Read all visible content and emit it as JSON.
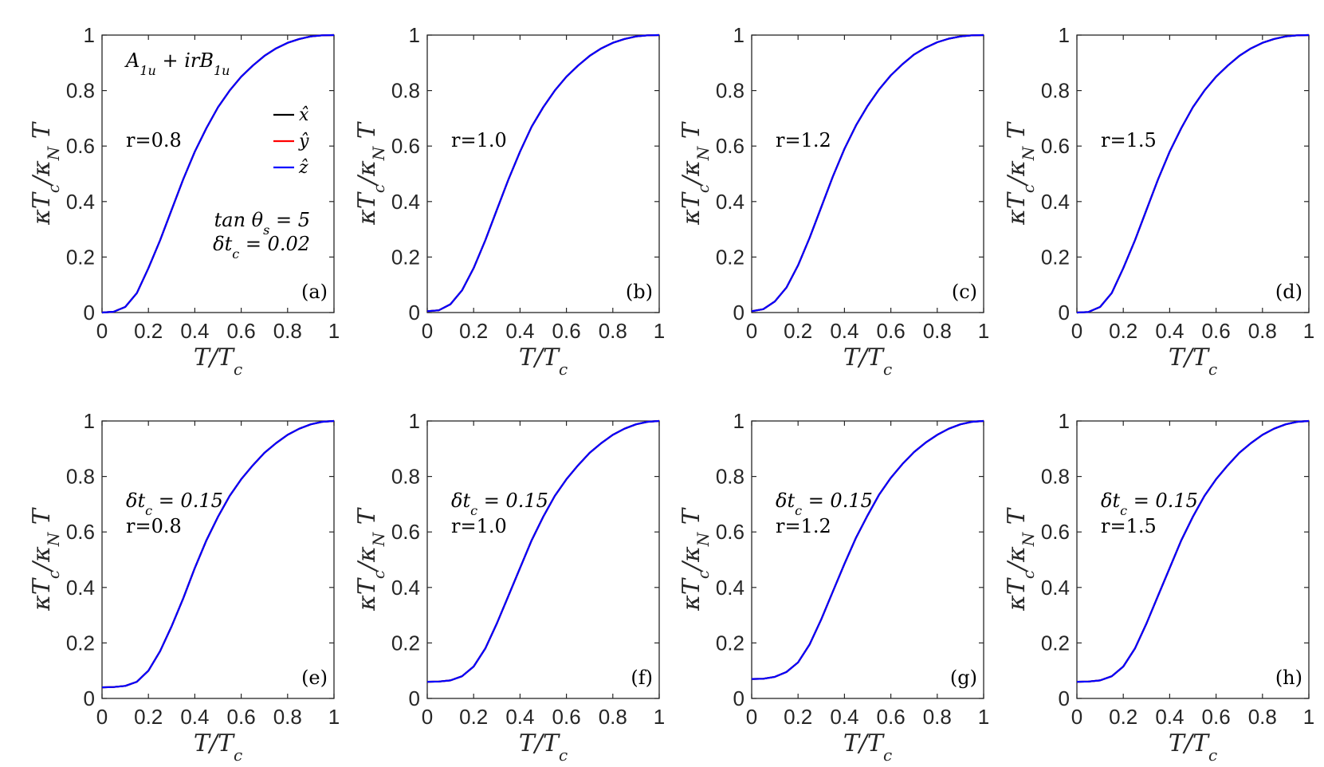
{
  "chart_data": [
    {
      "type": "line",
      "panel_label": "(a)",
      "title": "",
      "xlabel": "T/T_c",
      "ylabel": "κT_c/κ_N T",
      "xlim": [
        0,
        1
      ],
      "ylim": [
        0,
        1
      ],
      "xticks": [
        "0",
        "0.2",
        "0.4",
        "0.6",
        "0.8",
        "1"
      ],
      "yticks": [
        "0",
        "0.2",
        "0.4",
        "0.6",
        "0.8",
        "1"
      ],
      "annotations": [
        "A_1u + irB_1u",
        "r=0.8",
        "tan θ_s = 5",
        "δt_c = 0.02"
      ],
      "legend": {
        "placement": "right",
        "entries": [
          "x̂",
          "ŷ",
          "ẑ"
        ]
      },
      "x": [
        0,
        0.05,
        0.1,
        0.15,
        0.2,
        0.25,
        0.3,
        0.35,
        0.4,
        0.45,
        0.5,
        0.55,
        0.6,
        0.65,
        0.7,
        0.75,
        0.8,
        0.85,
        0.9,
        0.95,
        1
      ],
      "series": [
        {
          "name": "x̂",
          "color": "#000000",
          "values": [
            0,
            0.003,
            0.02,
            0.07,
            0.16,
            0.26,
            0.37,
            0.48,
            0.58,
            0.665,
            0.74,
            0.8,
            0.85,
            0.89,
            0.925,
            0.952,
            0.972,
            0.986,
            0.995,
            0.999,
            1
          ]
        },
        {
          "name": "ŷ",
          "color": "#ff0000",
          "values": [
            0,
            0.003,
            0.02,
            0.07,
            0.16,
            0.26,
            0.37,
            0.48,
            0.58,
            0.665,
            0.74,
            0.8,
            0.85,
            0.89,
            0.925,
            0.952,
            0.972,
            0.986,
            0.995,
            0.999,
            1
          ]
        },
        {
          "name": "ẑ",
          "color": "#0000ff",
          "values": [
            0,
            0.003,
            0.02,
            0.07,
            0.16,
            0.26,
            0.37,
            0.48,
            0.58,
            0.665,
            0.74,
            0.8,
            0.85,
            0.89,
            0.925,
            0.952,
            0.972,
            0.986,
            0.995,
            0.999,
            1
          ]
        }
      ]
    },
    {
      "type": "line",
      "panel_label": "(b)",
      "title": "",
      "xlabel": "T/T_c",
      "ylabel": "κT_c/κ_N T",
      "xlim": [
        0,
        1
      ],
      "ylim": [
        0,
        1
      ],
      "xticks": [
        "0",
        "0.2",
        "0.4",
        "0.6",
        "0.8",
        "1"
      ],
      "yticks": [
        "0",
        "0.2",
        "0.4",
        "0.6",
        "0.8",
        "1"
      ],
      "annotations": [
        "r=1.0"
      ],
      "x": [
        0,
        0.05,
        0.1,
        0.15,
        0.2,
        0.25,
        0.3,
        0.35,
        0.4,
        0.45,
        0.5,
        0.55,
        0.6,
        0.65,
        0.7,
        0.75,
        0.8,
        0.85,
        0.9,
        0.95,
        1
      ],
      "series": [
        {
          "name": "x̂",
          "color": "#000000",
          "values": [
            0.005,
            0.008,
            0.03,
            0.08,
            0.16,
            0.26,
            0.37,
            0.48,
            0.58,
            0.67,
            0.74,
            0.8,
            0.85,
            0.89,
            0.925,
            0.952,
            0.972,
            0.986,
            0.995,
            0.999,
            1
          ]
        },
        {
          "name": "ŷ",
          "color": "#ff0000",
          "values": [
            0.005,
            0.008,
            0.03,
            0.08,
            0.16,
            0.26,
            0.37,
            0.48,
            0.58,
            0.67,
            0.74,
            0.8,
            0.85,
            0.89,
            0.925,
            0.952,
            0.972,
            0.986,
            0.995,
            0.999,
            1
          ]
        },
        {
          "name": "ẑ",
          "color": "#0000ff",
          "values": [
            0.005,
            0.008,
            0.03,
            0.08,
            0.16,
            0.26,
            0.37,
            0.48,
            0.58,
            0.67,
            0.74,
            0.8,
            0.85,
            0.89,
            0.925,
            0.952,
            0.972,
            0.986,
            0.995,
            0.999,
            1
          ]
        }
      ]
    },
    {
      "type": "line",
      "panel_label": "(c)",
      "title": "",
      "xlabel": "T/T_c",
      "ylabel": "κT_c/κ_N T",
      "xlim": [
        0,
        1
      ],
      "ylim": [
        0,
        1
      ],
      "xticks": [
        "0",
        "0.2",
        "0.4",
        "0.6",
        "0.8",
        "1"
      ],
      "yticks": [
        "0",
        "0.2",
        "0.4",
        "0.6",
        "0.8",
        "1"
      ],
      "annotations": [
        "r=1.2"
      ],
      "x": [
        0,
        0.05,
        0.1,
        0.15,
        0.2,
        0.25,
        0.3,
        0.35,
        0.4,
        0.45,
        0.5,
        0.55,
        0.6,
        0.65,
        0.7,
        0.75,
        0.8,
        0.85,
        0.9,
        0.95,
        1
      ],
      "series": [
        {
          "name": "x̂",
          "color": "#000000",
          "values": [
            0.005,
            0.012,
            0.04,
            0.09,
            0.17,
            0.27,
            0.38,
            0.49,
            0.59,
            0.675,
            0.745,
            0.805,
            0.855,
            0.895,
            0.93,
            0.955,
            0.974,
            0.987,
            0.995,
            0.999,
            1
          ]
        },
        {
          "name": "ŷ",
          "color": "#ff0000",
          "values": [
            0.005,
            0.012,
            0.04,
            0.09,
            0.17,
            0.27,
            0.38,
            0.49,
            0.59,
            0.675,
            0.745,
            0.805,
            0.855,
            0.895,
            0.93,
            0.955,
            0.974,
            0.987,
            0.995,
            0.999,
            1
          ]
        },
        {
          "name": "ẑ",
          "color": "#0000ff",
          "values": [
            0.005,
            0.012,
            0.04,
            0.09,
            0.17,
            0.27,
            0.38,
            0.49,
            0.59,
            0.675,
            0.745,
            0.805,
            0.855,
            0.895,
            0.93,
            0.955,
            0.974,
            0.987,
            0.995,
            0.999,
            1
          ]
        }
      ]
    },
    {
      "type": "line",
      "panel_label": "(d)",
      "title": "",
      "xlabel": "T/T_c",
      "ylabel": "κT_c/κ_N T",
      "xlim": [
        0,
        1
      ],
      "ylim": [
        0,
        1
      ],
      "xticks": [
        "0",
        "0.2",
        "0.4",
        "0.6",
        "0.8",
        "1"
      ],
      "yticks": [
        "0",
        "0.2",
        "0.4",
        "0.6",
        "0.8",
        "1"
      ],
      "annotations": [
        "r=1.5"
      ],
      "x": [
        0,
        0.05,
        0.1,
        0.15,
        0.2,
        0.25,
        0.3,
        0.35,
        0.4,
        0.45,
        0.5,
        0.55,
        0.6,
        0.65,
        0.7,
        0.75,
        0.8,
        0.85,
        0.9,
        0.95,
        1
      ],
      "series": [
        {
          "name": "x̂",
          "color": "#000000",
          "values": [
            0,
            0.002,
            0.02,
            0.07,
            0.16,
            0.26,
            0.37,
            0.48,
            0.58,
            0.665,
            0.74,
            0.8,
            0.85,
            0.89,
            0.925,
            0.952,
            0.972,
            0.986,
            0.995,
            0.999,
            1
          ]
        },
        {
          "name": "ŷ",
          "color": "#ff0000",
          "values": [
            0,
            0.002,
            0.02,
            0.07,
            0.16,
            0.26,
            0.37,
            0.48,
            0.58,
            0.665,
            0.74,
            0.8,
            0.85,
            0.89,
            0.925,
            0.952,
            0.972,
            0.986,
            0.995,
            0.999,
            1
          ]
        },
        {
          "name": "ẑ",
          "color": "#0000ff",
          "values": [
            0,
            0.002,
            0.02,
            0.07,
            0.16,
            0.26,
            0.37,
            0.48,
            0.58,
            0.665,
            0.74,
            0.8,
            0.85,
            0.89,
            0.925,
            0.952,
            0.972,
            0.986,
            0.995,
            0.999,
            1
          ]
        }
      ]
    },
    {
      "type": "line",
      "panel_label": "(e)",
      "title": "",
      "xlabel": "T/T_c",
      "ylabel": "κT_c/κ_N T",
      "xlim": [
        0,
        1
      ],
      "ylim": [
        0,
        1
      ],
      "xticks": [
        "0",
        "0.2",
        "0.4",
        "0.6",
        "0.8",
        "1"
      ],
      "yticks": [
        "0",
        "0.2",
        "0.4",
        "0.6",
        "0.8",
        "1"
      ],
      "annotations": [
        "δt_c = 0.15",
        "r=0.8"
      ],
      "x": [
        0,
        0.05,
        0.1,
        0.15,
        0.2,
        0.25,
        0.3,
        0.35,
        0.4,
        0.45,
        0.5,
        0.55,
        0.6,
        0.65,
        0.7,
        0.75,
        0.8,
        0.85,
        0.9,
        0.95,
        1
      ],
      "series": [
        {
          "name": "x̂",
          "color": "#000000",
          "values": [
            0.04,
            0.041,
            0.045,
            0.06,
            0.1,
            0.17,
            0.26,
            0.36,
            0.47,
            0.57,
            0.655,
            0.73,
            0.79,
            0.84,
            0.885,
            0.92,
            0.95,
            0.972,
            0.988,
            0.997,
            1
          ]
        },
        {
          "name": "ŷ",
          "color": "#ff0000",
          "values": [
            0.04,
            0.041,
            0.045,
            0.06,
            0.1,
            0.17,
            0.26,
            0.36,
            0.47,
            0.57,
            0.655,
            0.73,
            0.79,
            0.84,
            0.885,
            0.92,
            0.95,
            0.972,
            0.988,
            0.997,
            1
          ]
        },
        {
          "name": "ẑ",
          "color": "#0000ff",
          "values": [
            0.04,
            0.041,
            0.045,
            0.06,
            0.1,
            0.17,
            0.26,
            0.36,
            0.47,
            0.57,
            0.655,
            0.73,
            0.79,
            0.84,
            0.885,
            0.92,
            0.95,
            0.972,
            0.988,
            0.997,
            1
          ]
        }
      ]
    },
    {
      "type": "line",
      "panel_label": "(f)",
      "title": "",
      "xlabel": "T/T_c",
      "ylabel": "κT_c/κ_N T",
      "xlim": [
        0,
        1
      ],
      "ylim": [
        0,
        1
      ],
      "xticks": [
        "0",
        "0.2",
        "0.4",
        "0.6",
        "0.8",
        "1"
      ],
      "yticks": [
        "0",
        "0.2",
        "0.4",
        "0.6",
        "0.8",
        "1"
      ],
      "annotations": [
        "δt_c = 0.15",
        "r=1.0"
      ],
      "x": [
        0,
        0.05,
        0.1,
        0.15,
        0.2,
        0.25,
        0.3,
        0.35,
        0.4,
        0.45,
        0.5,
        0.55,
        0.6,
        0.65,
        0.7,
        0.75,
        0.8,
        0.85,
        0.9,
        0.95,
        1
      ],
      "series": [
        {
          "name": "x̂",
          "color": "#000000",
          "values": [
            0.06,
            0.061,
            0.065,
            0.08,
            0.115,
            0.18,
            0.27,
            0.37,
            0.47,
            0.57,
            0.655,
            0.73,
            0.79,
            0.84,
            0.885,
            0.92,
            0.95,
            0.972,
            0.988,
            0.997,
            1
          ]
        },
        {
          "name": "ŷ",
          "color": "#ff0000",
          "values": [
            0.06,
            0.061,
            0.065,
            0.08,
            0.115,
            0.18,
            0.27,
            0.37,
            0.47,
            0.57,
            0.655,
            0.73,
            0.79,
            0.84,
            0.885,
            0.92,
            0.95,
            0.972,
            0.988,
            0.997,
            1
          ]
        },
        {
          "name": "ẑ",
          "color": "#0000ff",
          "values": [
            0.06,
            0.061,
            0.065,
            0.08,
            0.115,
            0.18,
            0.27,
            0.37,
            0.47,
            0.57,
            0.655,
            0.73,
            0.79,
            0.84,
            0.885,
            0.92,
            0.95,
            0.972,
            0.988,
            0.997,
            1
          ]
        }
      ]
    },
    {
      "type": "line",
      "panel_label": "(g)",
      "title": "",
      "xlabel": "T/T_c",
      "ylabel": "κT_c/κ_N T",
      "xlim": [
        0,
        1
      ],
      "ylim": [
        0,
        1
      ],
      "xticks": [
        "0",
        "0.2",
        "0.4",
        "0.6",
        "0.8",
        "1"
      ],
      "yticks": [
        "0",
        "0.2",
        "0.4",
        "0.6",
        "0.8",
        "1"
      ],
      "annotations": [
        "δt_c = 0.15",
        "r=1.2"
      ],
      "x": [
        0,
        0.05,
        0.1,
        0.15,
        0.2,
        0.25,
        0.3,
        0.35,
        0.4,
        0.45,
        0.5,
        0.55,
        0.6,
        0.65,
        0.7,
        0.75,
        0.8,
        0.85,
        0.9,
        0.95,
        1
      ],
      "series": [
        {
          "name": "x̂",
          "color": "#000000",
          "values": [
            0.07,
            0.071,
            0.078,
            0.095,
            0.13,
            0.195,
            0.285,
            0.385,
            0.485,
            0.58,
            0.66,
            0.735,
            0.795,
            0.845,
            0.888,
            0.922,
            0.95,
            0.972,
            0.988,
            0.997,
            1
          ]
        },
        {
          "name": "ŷ",
          "color": "#ff0000",
          "values": [
            0.07,
            0.071,
            0.078,
            0.095,
            0.13,
            0.195,
            0.285,
            0.385,
            0.485,
            0.58,
            0.66,
            0.735,
            0.795,
            0.845,
            0.888,
            0.922,
            0.95,
            0.972,
            0.988,
            0.997,
            1
          ]
        },
        {
          "name": "ẑ",
          "color": "#0000ff",
          "values": [
            0.07,
            0.071,
            0.078,
            0.095,
            0.13,
            0.195,
            0.285,
            0.385,
            0.485,
            0.58,
            0.66,
            0.735,
            0.795,
            0.845,
            0.888,
            0.922,
            0.95,
            0.972,
            0.988,
            0.997,
            1
          ]
        }
      ]
    },
    {
      "type": "line",
      "panel_label": "(h)",
      "title": "",
      "xlabel": "T/T_c",
      "ylabel": "κT_c/κ_N T",
      "xlim": [
        0,
        1
      ],
      "ylim": [
        0,
        1
      ],
      "xticks": [
        "0",
        "0.2",
        "0.4",
        "0.6",
        "0.8",
        "1"
      ],
      "yticks": [
        "0",
        "0.2",
        "0.4",
        "0.6",
        "0.8",
        "1"
      ],
      "annotations": [
        "δt_c = 0.15",
        "r=1.5"
      ],
      "x": [
        0,
        0.05,
        0.1,
        0.15,
        0.2,
        0.25,
        0.3,
        0.35,
        0.4,
        0.45,
        0.5,
        0.55,
        0.6,
        0.65,
        0.7,
        0.75,
        0.8,
        0.85,
        0.9,
        0.95,
        1
      ],
      "series": [
        {
          "name": "x̂",
          "color": "#000000",
          "values": [
            0.06,
            0.061,
            0.065,
            0.08,
            0.115,
            0.18,
            0.27,
            0.37,
            0.47,
            0.57,
            0.655,
            0.73,
            0.79,
            0.84,
            0.885,
            0.92,
            0.95,
            0.972,
            0.988,
            0.997,
            1
          ]
        },
        {
          "name": "ŷ",
          "color": "#ff0000",
          "values": [
            0.06,
            0.061,
            0.065,
            0.08,
            0.115,
            0.18,
            0.27,
            0.37,
            0.47,
            0.57,
            0.655,
            0.73,
            0.79,
            0.84,
            0.885,
            0.92,
            0.95,
            0.972,
            0.988,
            0.997,
            1
          ]
        },
        {
          "name": "ẑ",
          "color": "#0000ff",
          "values": [
            0.06,
            0.061,
            0.065,
            0.08,
            0.115,
            0.18,
            0.27,
            0.37,
            0.47,
            0.57,
            0.655,
            0.73,
            0.79,
            0.84,
            0.885,
            0.92,
            0.95,
            0.972,
            0.988,
            0.997,
            1
          ]
        }
      ]
    }
  ]
}
